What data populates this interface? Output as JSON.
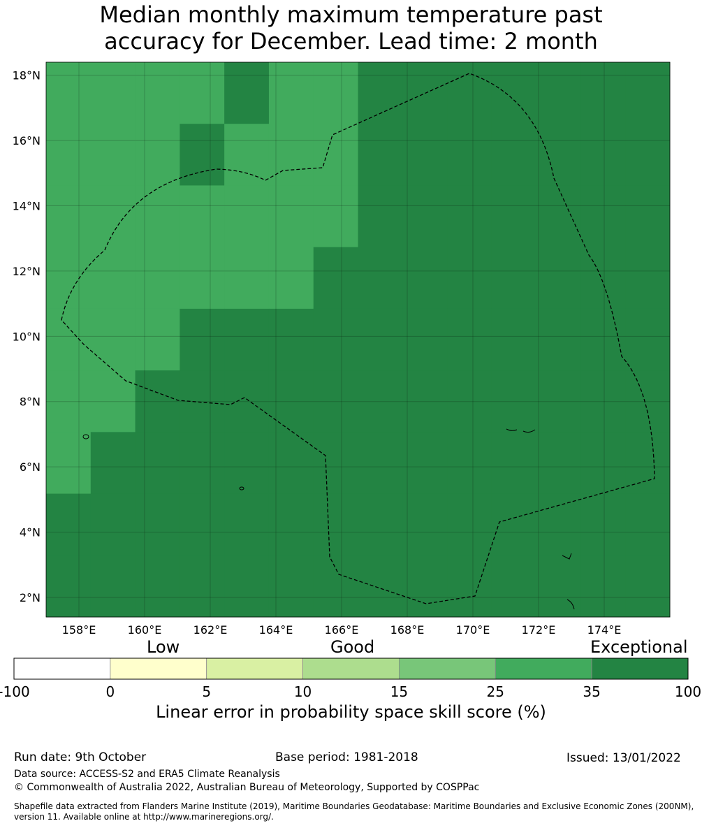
{
  "title_line1": "Median monthly maximum temperature past",
  "title_line2": "accuracy for December. Lead time: 2 month",
  "map": {
    "lon_min": 157,
    "lon_max": 176,
    "lat_min": 1.4,
    "lat_max": 18.4,
    "lon_ticks": [
      "158°E",
      "160°E",
      "162°E",
      "164°E",
      "166°E",
      "168°E",
      "170°E",
      "172°E",
      "174°E"
    ],
    "lat_ticks": [
      "2°N",
      "4°N",
      "6°N",
      "8°N",
      "10°N",
      "12°N",
      "14°N",
      "16°N",
      "18°N"
    ],
    "colors": {
      "c0": "#ffffff",
      "c1": "#ffffcc",
      "c2": "#d9f0a3",
      "c3": "#addd8e",
      "c4": "#78c679",
      "c5": "#41ab5d",
      "c6": "#238443"
    },
    "grid_rows": [
      "55556556666666",
      "55565556666666",
      "55555556666666",
      "55555566666666",
      "55566666666666",
      "55666666666666",
      "56666666666666",
      "66666666666666",
      "66666666666666"
    ]
  },
  "categories": {
    "low": "Low",
    "good": "Good",
    "exceptional": "Exceptional"
  },
  "colorbar": {
    "labels": [
      "-100",
      "0",
      "5",
      "10",
      "15",
      "25",
      "35",
      "100"
    ],
    "colors": [
      "#ffffff",
      "#ffffcc",
      "#d9f0a3",
      "#addd8e",
      "#78c679",
      "#41ab5d",
      "#238443"
    ],
    "title": "Linear error in probability space skill score (%)"
  },
  "footer": {
    "run_date": "Run date: 9th October",
    "base_period": "Base period: 1981-2018",
    "issued": "Issued: 13/01/2022",
    "data_source": "Data source: ACCESS-S2 and ERA5 Climate Reanalysis",
    "copyright": "© Commonwealth of Australia 2022, Australian Bureau of Meteorology, Supported by COSPPac",
    "shapefile_line1": "Shapefile data extracted from Flanders Marine Institute (2019), Maritime Boundaries Geodatabase: Maritime Boundaries and Exclusive Economic Zones (200NM),",
    "shapefile_line2": "version 11. Available online at http://www.marineregions.org/."
  }
}
